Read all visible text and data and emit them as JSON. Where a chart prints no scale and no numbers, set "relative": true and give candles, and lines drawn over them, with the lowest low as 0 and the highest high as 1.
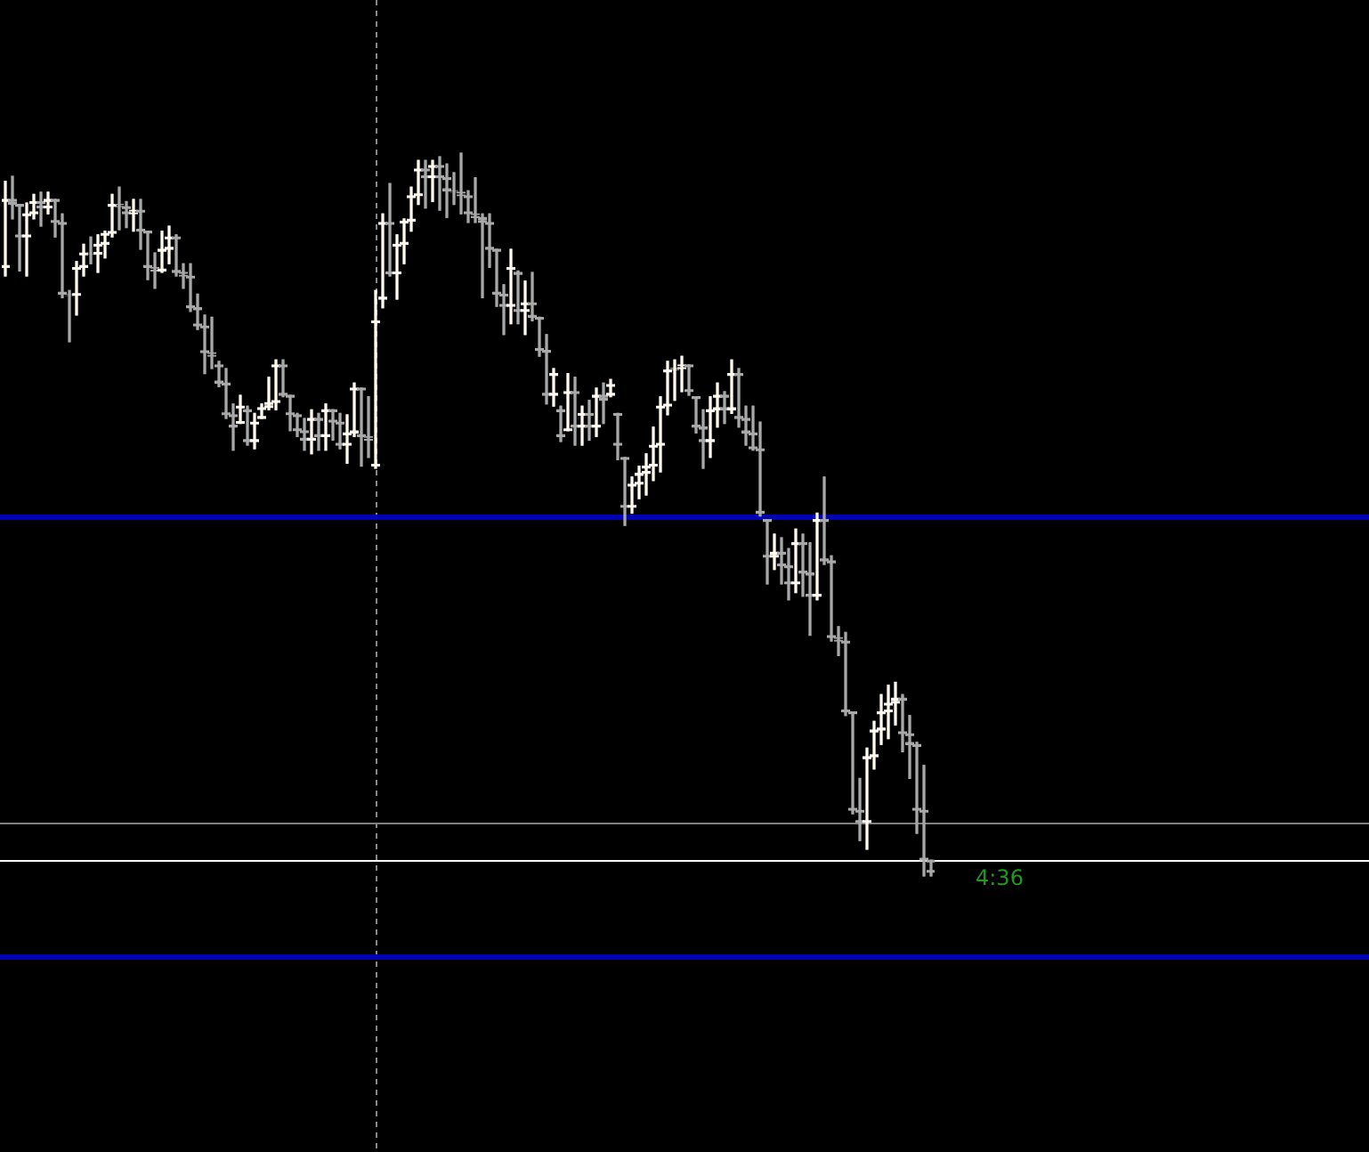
{
  "chart_data": {
    "type": "candlestick",
    "relative": true,
    "tick_labels": false,
    "categories": [
      null,
      null,
      null,
      null,
      null,
      null,
      null,
      null,
      null,
      null,
      null,
      null,
      null,
      null,
      null,
      null,
      null,
      null,
      null,
      null,
      null,
      null,
      null,
      null,
      null,
      null,
      null,
      null,
      null,
      null,
      null,
      null,
      null,
      null,
      null,
      null,
      null,
      null,
      null,
      null,
      null,
      null,
      null,
      null,
      null,
      null,
      null,
      null,
      null,
      null,
      null,
      null,
      null,
      null,
      null,
      null,
      null,
      null,
      null,
      null,
      null,
      null,
      null,
      null,
      null,
      null,
      null,
      null,
      null,
      null,
      null,
      null,
      null,
      null,
      null,
      null,
      null,
      null,
      null,
      null,
      null,
      null,
      null,
      null,
      null,
      null,
      null,
      null,
      null,
      null,
      null,
      null,
      null,
      null,
      null,
      null,
      null,
      null,
      null,
      null,
      null,
      null,
      null,
      null,
      null,
      null,
      null,
      null,
      null,
      null,
      null,
      null,
      null,
      null,
      null,
      null,
      null,
      null,
      null,
      null,
      null,
      null,
      null,
      null,
      null,
      null,
      null,
      null,
      null,
      null,
      null
    ],
    "ohlc": [
      [
        0.842,
        0.961,
        0.83,
        0.936
      ],
      [
        0.936,
        0.968,
        0.909,
        0.929
      ],
      [
        0.929,
        0.929,
        0.837,
        0.884
      ],
      [
        0.884,
        0.931,
        0.83,
        0.916
      ],
      [
        0.916,
        0.943,
        0.909,
        0.933
      ],
      [
        0.933,
        0.946,
        0.899,
        0.924
      ],
      [
        0.924,
        0.946,
        0.916,
        0.936
      ],
      [
        0.936,
        0.936,
        0.884,
        0.904
      ],
      [
        0.904,
        0.916,
        0.8,
        0.805
      ],
      [
        0.805,
        0.81,
        0.739,
        0.803
      ],
      [
        0.803,
        0.85,
        0.776,
        0.842
      ],
      [
        0.842,
        0.874,
        0.83,
        0.862
      ],
      [
        0.862,
        0.884,
        0.847,
        0.86
      ],
      [
        0.86,
        0.887,
        0.835,
        0.874
      ],
      [
        0.874,
        0.892,
        0.855,
        0.889
      ],
      [
        0.889,
        0.943,
        0.884,
        0.929
      ],
      [
        0.929,
        0.953,
        0.894,
        0.926
      ],
      [
        0.926,
        0.933,
        0.897,
        0.916
      ],
      [
        0.916,
        0.936,
        0.892,
        0.921
      ],
      [
        0.921,
        0.936,
        0.867,
        0.892
      ],
      [
        0.892,
        0.892,
        0.825,
        0.842
      ],
      [
        0.842,
        0.862,
        0.813,
        0.837
      ],
      [
        0.837,
        0.892,
        0.835,
        0.867
      ],
      [
        0.867,
        0.899,
        0.847,
        0.884
      ],
      [
        0.884,
        0.887,
        0.83,
        0.835
      ],
      [
        0.835,
        0.847,
        0.813,
        0.83
      ],
      [
        0.83,
        0.847,
        0.781,
        0.786
      ],
      [
        0.786,
        0.805,
        0.756,
        0.761
      ],
      [
        0.761,
        0.776,
        0.695,
        0.724
      ],
      [
        0.724,
        0.773,
        0.702,
        0.719
      ],
      [
        0.707,
        0.712,
        0.677,
        0.682
      ],
      [
        0.682,
        0.702,
        0.633,
        0.638
      ],
      [
        0.638,
        0.653,
        0.589,
        0.621
      ],
      [
        0.626,
        0.665,
        0.626,
        0.65
      ],
      [
        0.645,
        0.65,
        0.596,
        0.601
      ],
      [
        0.601,
        0.64,
        0.591,
        0.628
      ],
      [
        0.633,
        0.653,
        0.633,
        0.648
      ],
      [
        0.648,
        0.69,
        0.645,
        0.655
      ],
      [
        0.655,
        0.714,
        0.645,
        0.707
      ],
      [
        0.707,
        0.714,
        0.663,
        0.665
      ],
      [
        0.665,
        0.665,
        0.616,
        0.638
      ],
      [
        0.638,
        0.64,
        0.608,
        0.616
      ],
      [
        0.616,
        0.633,
        0.589,
        0.603
      ],
      [
        0.603,
        0.645,
        0.584,
        0.633
      ],
      [
        0.633,
        0.64,
        0.589,
        0.608
      ],
      [
        0.608,
        0.653,
        0.589,
        0.645
      ],
      [
        0.645,
        0.645,
        0.603,
        0.628
      ],
      [
        0.628,
        0.64,
        0.591,
        0.596
      ],
      [
        0.596,
        0.638,
        0.571,
        0.613
      ],
      [
        0.613,
        0.682,
        0.608,
        0.675
      ],
      [
        0.675,
        0.675,
        0.567,
        0.608
      ],
      [
        0.608,
        0.663,
        0.579,
        0.603
      ],
      [
        0.567,
        0.81,
        0.564,
        0.768
      ],
      [
        0.798,
        0.916,
        0.786,
        0.904
      ],
      [
        0.904,
        0.958,
        0.83,
        0.833
      ],
      [
        0.833,
        0.887,
        0.798,
        0.874
      ],
      [
        0.874,
        0.909,
        0.847,
        0.906
      ],
      [
        0.906,
        0.953,
        0.892,
        0.941
      ],
      [
        0.941,
        0.99,
        0.929,
        0.978
      ],
      [
        0.978,
        0.99,
        0.924,
        0.966
      ],
      [
        0.966,
        0.99,
        0.933,
        0.983
      ],
      [
        0.983,
        0.995,
        0.921,
        0.966
      ],
      [
        0.966,
        0.985,
        0.911,
        0.948
      ],
      [
        0.948,
        0.973,
        0.929,
        0.946
      ],
      [
        0.946,
        1.0,
        0.916,
        0.941
      ],
      [
        0.941,
        0.948,
        0.904,
        0.916
      ],
      [
        0.916,
        0.966,
        0.904,
        0.911
      ],
      [
        0.911,
        0.916,
        0.8,
        0.904
      ],
      [
        0.904,
        0.916,
        0.842,
        0.867
      ],
      [
        0.867,
        0.867,
        0.788,
        0.805
      ],
      [
        0.805,
        0.818,
        0.749,
        0.788
      ],
      [
        0.788,
        0.867,
        0.764,
        0.842
      ],
      [
        0.835,
        0.837,
        0.764,
        0.781
      ],
      [
        0.781,
        0.823,
        0.749,
        0.793
      ],
      [
        0.793,
        0.835,
        0.768,
        0.773
      ],
      [
        0.773,
        0.773,
        0.719,
        0.727
      ],
      [
        0.727,
        0.749,
        0.653,
        0.665
      ],
      [
        0.665,
        0.702,
        0.65,
        0.695
      ],
      [
        0.645,
        0.65,
        0.601,
        0.608
      ],
      [
        0.616,
        0.695,
        0.616,
        0.67
      ],
      [
        0.67,
        0.69,
        0.596,
        0.621
      ],
      [
        0.621,
        0.65,
        0.596,
        0.64
      ],
      [
        0.64,
        0.658,
        0.603,
        0.621
      ],
      [
        0.621,
        0.675,
        0.608,
        0.665
      ],
      [
        0.665,
        0.682,
        0.626,
        0.658
      ],
      [
        0.665,
        0.687,
        0.663,
        0.68
      ],
      [
        0.64,
        0.64,
        0.576,
        0.596
      ],
      [
        0.579,
        0.579,
        0.485,
        0.51
      ],
      [
        0.51,
        0.552,
        0.502,
        0.542
      ],
      [
        0.542,
        0.567,
        0.522,
        0.557
      ],
      [
        0.557,
        0.584,
        0.527,
        0.567
      ],
      [
        0.567,
        0.621,
        0.547,
        0.596
      ],
      [
        0.596,
        0.663,
        0.559,
        0.65
      ],
      [
        0.65,
        0.712,
        0.638,
        0.7
      ],
      [
        0.7,
        0.714,
        0.658,
        0.702
      ],
      [
        0.702,
        0.719,
        0.67,
        0.707
      ],
      [
        0.707,
        0.707,
        0.665,
        0.67
      ],
      [
        0.663,
        0.663,
        0.613,
        0.621
      ],
      [
        0.621,
        0.645,
        0.564,
        0.601
      ],
      [
        0.601,
        0.663,
        0.579,
        0.645
      ],
      [
        0.645,
        0.682,
        0.621,
        0.665
      ],
      [
        0.665,
        0.67,
        0.626,
        0.645
      ],
      [
        0.645,
        0.714,
        0.64,
        0.695
      ],
      [
        0.695,
        0.702,
        0.621,
        0.633
      ],
      [
        0.633,
        0.65,
        0.596,
        0.613
      ],
      [
        0.613,
        0.65,
        0.589,
        0.591
      ],
      [
        0.591,
        0.628,
        0.498,
        0.502
      ],
      [
        0.493,
        0.493,
        0.404,
        0.441
      ],
      [
        0.441,
        0.473,
        0.424,
        0.448
      ],
      [
        0.448,
        0.468,
        0.404,
        0.429
      ],
      [
        0.429,
        0.453,
        0.382,
        0.404
      ],
      [
        0.404,
        0.48,
        0.392,
        0.461
      ],
      [
        0.461,
        0.473,
        0.387,
        0.419
      ],
      [
        0.419,
        0.461,
        0.333,
        0.387
      ],
      [
        0.387,
        0.502,
        0.382,
        0.493
      ],
      [
        0.493,
        0.552,
        0.431,
        0.436
      ],
      [
        0.436,
        0.443,
        0.325,
        0.33
      ],
      [
        0.33,
        0.345,
        0.305,
        0.325
      ],
      [
        0.325,
        0.337,
        0.222,
        0.227
      ],
      [
        0.227,
        0.227,
        0.086,
        0.091
      ],
      [
        0.091,
        0.135,
        0.049,
        0.074
      ],
      [
        0.074,
        0.177,
        0.037,
        0.165
      ],
      [
        0.165,
        0.214,
        0.148,
        0.202
      ],
      [
        0.202,
        0.251,
        0.182,
        0.227
      ],
      [
        0.227,
        0.264,
        0.19,
        0.239
      ],
      [
        0.239,
        0.268,
        0.209,
        0.246
      ],
      [
        0.246,
        0.251,
        0.172,
        0.197
      ],
      [
        0.197,
        0.222,
        0.135,
        0.182
      ],
      [
        0.182,
        0.185,
        0.059,
        0.091
      ],
      [
        0.091,
        0.153,
        0.0,
        0.022
      ],
      [
        0.022,
        0.022,
        0.0,
        0.005
      ]
    ],
    "colors": [
      "#fffaf0",
      "#a8a8a8",
      "#a8a8a8",
      "#fffaf0",
      "#fffaf0",
      "#a8a8a8",
      "#fffaf0",
      "#a8a8a8",
      "#a8a8a8",
      "#a8a8a8",
      "#fffaf0",
      "#fffaf0",
      "#a8a8a8",
      "#fffaf0",
      "#fffaf0",
      "#fffaf0",
      "#a8a8a8",
      "#a8a8a8",
      "#fffaf0",
      "#a8a8a8",
      "#a8a8a8",
      "#a8a8a8",
      "#fffaf0",
      "#fffaf0",
      "#a8a8a8",
      "#a8a8a8",
      "#a8a8a8",
      "#a8a8a8",
      "#a8a8a8",
      "#a8a8a8",
      "#a8a8a8",
      "#a8a8a8",
      "#a8a8a8",
      "#fffaf0",
      "#a8a8a8",
      "#fffaf0",
      "#fffaf0",
      "#fffaf0",
      "#fffaf0",
      "#a8a8a8",
      "#a8a8a8",
      "#a8a8a8",
      "#a8a8a8",
      "#fffaf0",
      "#a8a8a8",
      "#fffaf0",
      "#a8a8a8",
      "#a8a8a8",
      "#fffaf0",
      "#fffaf0",
      "#a8a8a8",
      "#a8a8a8",
      "#fffaf0",
      "#fffaf0",
      "#a8a8a8",
      "#fffaf0",
      "#fffaf0",
      "#fffaf0",
      "#fffaf0",
      "#a8a8a8",
      "#fffaf0",
      "#a8a8a8",
      "#a8a8a8",
      "#a8a8a8",
      "#a8a8a8",
      "#a8a8a8",
      "#a8a8a8",
      "#a8a8a8",
      "#a8a8a8",
      "#a8a8a8",
      "#a8a8a8",
      "#fffaf0",
      "#a8a8a8",
      "#fffaf0",
      "#a8a8a8",
      "#a8a8a8",
      "#a8a8a8",
      "#fffaf0",
      "#a8a8a8",
      "#fffaf0",
      "#a8a8a8",
      "#fffaf0",
      "#a8a8a8",
      "#fffaf0",
      "#a8a8a8",
      "#fffaf0",
      "#a8a8a8",
      "#a8a8a8",
      "#fffaf0",
      "#fffaf0",
      "#fffaf0",
      "#fffaf0",
      "#fffaf0",
      "#fffaf0",
      "#fffaf0",
      "#fffaf0",
      "#a8a8a8",
      "#a8a8a8",
      "#a8a8a8",
      "#fffaf0",
      "#fffaf0",
      "#a8a8a8",
      "#fffaf0",
      "#a8a8a8",
      "#a8a8a8",
      "#a8a8a8",
      "#a8a8a8",
      "#a8a8a8",
      "#fffaf0",
      "#a8a8a8",
      "#a8a8a8",
      "#fffaf0",
      "#a8a8a8",
      "#a8a8a8",
      "#fffaf0",
      "#a8a8a8",
      "#a8a8a8",
      "#a8a8a8",
      "#a8a8a8",
      "#a8a8a8",
      "#a8a8a8",
      "#fffaf0",
      "#fffaf0",
      "#fffaf0",
      "#fffaf0",
      "#fffaf0",
      "#a8a8a8",
      "#a8a8a8",
      "#a8a8a8",
      "#a8a8a8",
      "#a8a8a8"
    ],
    "ref_lines": [
      {
        "axis": "y",
        "value": 0.498,
        "color": "#0000b4"
      },
      {
        "axis": "y",
        "value": 0.074,
        "color": "#808080"
      },
      {
        "axis": "y",
        "value": 0.022,
        "color": "#ffffff"
      },
      {
        "axis": "y",
        "value": -0.111,
        "color": "#0000b4"
      }
    ],
    "annotations": [
      "4:36"
    ]
  }
}
